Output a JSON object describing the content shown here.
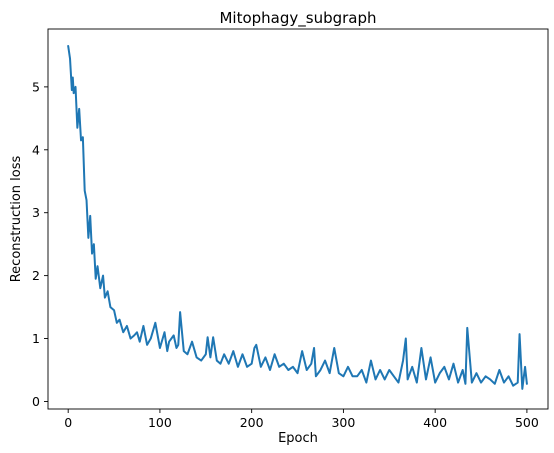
{
  "chart_data": {
    "type": "line",
    "title": "Mitophagy_subgraph",
    "xlabel": "Epoch",
    "ylabel": "Reconstruction loss",
    "xlim": [
      -22,
      523
    ],
    "ylim": [
      -0.12,
      5.92
    ],
    "xticks": [
      0,
      100,
      200,
      300,
      400,
      500
    ],
    "yticks": [
      0,
      1,
      2,
      3,
      4,
      5
    ],
    "grid": false,
    "legend": "none",
    "series": [
      {
        "color": "#1f77b4",
        "x": [
          0,
          2,
          4,
          5,
          6,
          8,
          10,
          12,
          14,
          16,
          18,
          20,
          22,
          24,
          26,
          28,
          30,
          32,
          35,
          38,
          40,
          43,
          46,
          50,
          53,
          56,
          60,
          64,
          68,
          72,
          75,
          78,
          82,
          86,
          90,
          95,
          100,
          105,
          108,
          110,
          115,
          118,
          120,
          122,
          126,
          130,
          135,
          140,
          145,
          150,
          152,
          155,
          158,
          162,
          166,
          170,
          175,
          180,
          185,
          190,
          195,
          200,
          203,
          205,
          210,
          215,
          220,
          225,
          230,
          235,
          240,
          245,
          250,
          255,
          260,
          265,
          268,
          270,
          275,
          280,
          285,
          290,
          295,
          300,
          305,
          310,
          315,
          320,
          325,
          330,
          335,
          340,
          345,
          350,
          355,
          360,
          365,
          368,
          370,
          375,
          380,
          385,
          390,
          395,
          400,
          405,
          410,
          415,
          420,
          425,
          430,
          433,
          435,
          440,
          445,
          450,
          455,
          460,
          465,
          470,
          475,
          480,
          485,
          490,
          492,
          495,
          498,
          500
        ],
        "y": [
          5.65,
          5.45,
          4.95,
          5.15,
          4.9,
          5.0,
          4.35,
          4.65,
          4.15,
          4.2,
          3.35,
          3.2,
          2.6,
          2.95,
          2.35,
          2.5,
          1.95,
          2.15,
          1.8,
          2.0,
          1.65,
          1.75,
          1.5,
          1.45,
          1.25,
          1.3,
          1.1,
          1.2,
          1.0,
          1.05,
          1.1,
          0.95,
          1.2,
          0.9,
          1.0,
          1.25,
          0.85,
          1.1,
          0.8,
          0.95,
          1.05,
          0.85,
          0.9,
          1.42,
          0.8,
          0.75,
          0.95,
          0.7,
          0.65,
          0.75,
          1.02,
          0.7,
          1.02,
          0.65,
          0.6,
          0.75,
          0.6,
          0.8,
          0.55,
          0.75,
          0.55,
          0.6,
          0.85,
          0.9,
          0.55,
          0.7,
          0.5,
          0.75,
          0.55,
          0.6,
          0.5,
          0.55,
          0.45,
          0.8,
          0.5,
          0.6,
          0.85,
          0.4,
          0.5,
          0.65,
          0.45,
          0.85,
          0.45,
          0.4,
          0.55,
          0.4,
          0.4,
          0.5,
          0.3,
          0.65,
          0.35,
          0.5,
          0.35,
          0.5,
          0.4,
          0.3,
          0.65,
          1.0,
          0.35,
          0.55,
          0.3,
          0.85,
          0.35,
          0.7,
          0.3,
          0.45,
          0.55,
          0.35,
          0.6,
          0.3,
          0.5,
          0.28,
          1.17,
          0.3,
          0.45,
          0.3,
          0.4,
          0.35,
          0.28,
          0.5,
          0.3,
          0.4,
          0.25,
          0.3,
          1.07,
          0.2,
          0.55,
          0.28
        ]
      }
    ]
  }
}
